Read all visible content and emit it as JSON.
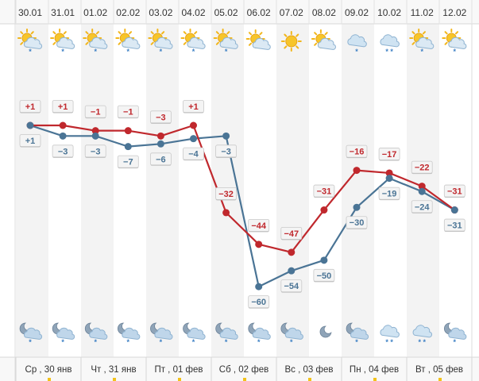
{
  "chart_data": {
    "type": "line",
    "dates": [
      "30.01",
      "31.01",
      "01.02",
      "02.02",
      "03.02",
      "04.02",
      "05.02",
      "06.02",
      "07.02",
      "08.02",
      "09.02",
      "10.02",
      "11.02",
      "12.02"
    ],
    "day_labels": [
      "Ср , 30 янв",
      "Чт , 31 янв",
      "Пт , 01 фев",
      "Сб , 02 фев",
      "Вс , 03 фев",
      "Пн , 04 фев",
      "Вт , 05 фев"
    ],
    "series": [
      {
        "color": "#c0282d",
        "values": [
          1,
          1,
          -1,
          -1,
          -3,
          1,
          -32,
          -44,
          -47,
          -31,
          -16,
          -17,
          -22,
          -31
        ],
        "labels": [
          "+1",
          "+1",
          "−1",
          "−1",
          "−3",
          "+1",
          "−32",
          "−44",
          "−47",
          "−31",
          "−16",
          "−17",
          "−22",
          "−31"
        ]
      },
      {
        "color": "#4a7495",
        "values": [
          1,
          -3,
          -3,
          -7,
          -6,
          -4,
          -3,
          -60,
          -54,
          -50,
          -30,
          -19,
          -24,
          -31
        ],
        "labels": [
          "+1",
          "−3",
          "−3",
          "−7",
          "−6",
          "−4",
          "−3",
          "−60",
          "−54",
          "−50",
          "−30",
          "−19",
          "−24",
          "−31"
        ]
      }
    ],
    "top_icons": [
      "partly-sunny-snow-icon",
      "partly-sunny-snow-icon",
      "partly-sunny-snow-icon",
      "partly-sunny-snow-icon",
      "partly-sunny-snow-icon",
      "partly-sunny-snow-icon",
      "partly-sunny-snow-icon",
      "partly-sunny-icon",
      "sun-icon",
      "partly-sunny-icon",
      "cloud-snow-icon",
      "cloud-snow-icon",
      "partly-sunny-snow-icon",
      "partly-sunny-snow-icon"
    ],
    "bottom_icons": [
      "night-cloud-snow-icon",
      "night-cloud-snow-icon",
      "night-cloud-snow-icon",
      "night-cloud-snow-icon",
      "night-cloud-snow-icon",
      "night-cloud-snow-icon",
      "night-cloud-snow-icon",
      "night-cloud-snow-icon",
      "night-cloud-snow-icon",
      "night-partly-cloudy-icon",
      "night-cloud-snow-icon",
      "cloud-snow-icon",
      "cloud-snow-icon",
      "night-cloud-snow-icon"
    ],
    "ylim": [
      -64,
      6
    ]
  }
}
